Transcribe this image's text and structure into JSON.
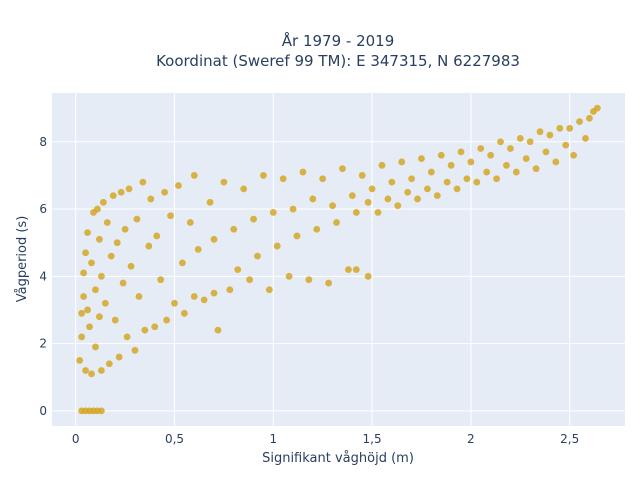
{
  "chart_data": {
    "type": "scatter",
    "title_line1": "År 1979 - 2019",
    "title_line2": "Koordinat (Sweref 99 TM): E 347315, N 6227983",
    "xlabel": "Signifikant våghöjd (m)",
    "ylabel": "Vågperiod (s)",
    "xlim": [
      -0.12,
      2.78
    ],
    "ylim": [
      -0.45,
      9.45
    ],
    "xticks": [
      0,
      0.5,
      1,
      1.5,
      2,
      2.5
    ],
    "xtick_labels": [
      "0",
      "0,5",
      "1",
      "1,5",
      "2",
      "2,5"
    ],
    "yticks": [
      0,
      2,
      4,
      6,
      8
    ],
    "ytick_labels": [
      "0",
      "2",
      "4",
      "6",
      "8"
    ],
    "grid": true,
    "marker_color": "#d4a41c",
    "background_color": "#e5ecf6",
    "points": [
      [
        0.02,
        1.5
      ],
      [
        0.03,
        2.2
      ],
      [
        0.03,
        2.9
      ],
      [
        0.04,
        3.4
      ],
      [
        0.04,
        4.1
      ],
      [
        0.05,
        4.7
      ],
      [
        0.05,
        1.2
      ],
      [
        0.06,
        3.0
      ],
      [
        0.06,
        5.3
      ],
      [
        0.07,
        2.5
      ],
      [
        0.08,
        1.1
      ],
      [
        0.08,
        4.4
      ],
      [
        0.09,
        5.9
      ],
      [
        0.1,
        3.6
      ],
      [
        0.1,
        1.9
      ],
      [
        0.11,
        6.0
      ],
      [
        0.12,
        2.8
      ],
      [
        0.12,
        5.1
      ],
      [
        0.13,
        1.2
      ],
      [
        0.13,
        4.0
      ],
      [
        0.14,
        6.2
      ],
      [
        0.15,
        3.2
      ],
      [
        0.16,
        5.6
      ],
      [
        0.17,
        1.4
      ],
      [
        0.18,
        4.6
      ],
      [
        0.19,
        6.4
      ],
      [
        0.2,
        2.7
      ],
      [
        0.21,
        5.0
      ],
      [
        0.22,
        1.6
      ],
      [
        0.23,
        6.5
      ],
      [
        0.24,
        3.8
      ],
      [
        0.25,
        5.4
      ],
      [
        0.26,
        2.2
      ],
      [
        0.27,
        6.6
      ],
      [
        0.28,
        4.3
      ],
      [
        0.3,
        1.8
      ],
      [
        0.31,
        5.7
      ],
      [
        0.32,
        3.4
      ],
      [
        0.34,
        6.8
      ],
      [
        0.35,
        2.4
      ],
      [
        0.37,
        4.9
      ],
      [
        0.38,
        6.3
      ],
      [
        0.4,
        2.5
      ],
      [
        0.41,
        5.2
      ],
      [
        0.43,
        3.9
      ],
      [
        0.45,
        6.5
      ],
      [
        0.46,
        2.7
      ],
      [
        0.48,
        5.8
      ],
      [
        0.5,
        3.2
      ],
      [
        0.52,
        6.7
      ],
      [
        0.54,
        4.4
      ],
      [
        0.55,
        2.9
      ],
      [
        0.58,
        5.6
      ],
      [
        0.6,
        3.4
      ],
      [
        0.6,
        7.0
      ],
      [
        0.62,
        4.8
      ],
      [
        0.65,
        3.3
      ],
      [
        0.68,
        6.2
      ],
      [
        0.7,
        3.5
      ],
      [
        0.7,
        5.1
      ],
      [
        0.72,
        2.4
      ],
      [
        0.75,
        6.8
      ],
      [
        0.78,
        3.6
      ],
      [
        0.8,
        5.4
      ],
      [
        0.82,
        4.2
      ],
      [
        0.85,
        6.6
      ],
      [
        0.88,
        3.9
      ],
      [
        0.9,
        5.7
      ],
      [
        0.92,
        4.6
      ],
      [
        0.95,
        7.0
      ],
      [
        0.98,
        3.6
      ],
      [
        1.0,
        5.9
      ],
      [
        1.02,
        4.9
      ],
      [
        1.05,
        6.9
      ],
      [
        1.08,
        4.0
      ],
      [
        1.1,
        6.0
      ],
      [
        1.12,
        5.2
      ],
      [
        1.15,
        7.1
      ],
      [
        1.18,
        3.9
      ],
      [
        1.2,
        6.3
      ],
      [
        1.22,
        5.4
      ],
      [
        1.25,
        6.9
      ],
      [
        1.28,
        3.8
      ],
      [
        1.3,
        6.1
      ],
      [
        1.32,
        5.6
      ],
      [
        1.35,
        7.2
      ],
      [
        1.38,
        4.2
      ],
      [
        1.4,
        6.4
      ],
      [
        1.42,
        5.9
      ],
      [
        1.45,
        7.0
      ],
      [
        1.48,
        6.2
      ],
      [
        1.5,
        6.6
      ],
      [
        1.53,
        5.9
      ],
      [
        1.55,
        7.3
      ],
      [
        1.58,
        6.3
      ],
      [
        1.6,
        6.8
      ],
      [
        1.63,
        6.1
      ],
      [
        1.65,
        7.4
      ],
      [
        1.68,
        6.5
      ],
      [
        1.7,
        6.9
      ],
      [
        1.73,
        6.3
      ],
      [
        1.75,
        7.5
      ],
      [
        1.78,
        6.6
      ],
      [
        1.8,
        7.1
      ],
      [
        1.83,
        6.4
      ],
      [
        1.85,
        7.6
      ],
      [
        1.88,
        6.8
      ],
      [
        1.9,
        7.3
      ],
      [
        1.93,
        6.6
      ],
      [
        1.95,
        7.7
      ],
      [
        1.98,
        6.9
      ],
      [
        2.0,
        7.4
      ],
      [
        2.03,
        6.8
      ],
      [
        2.05,
        7.8
      ],
      [
        2.08,
        7.1
      ],
      [
        2.1,
        7.6
      ],
      [
        2.13,
        6.9
      ],
      [
        2.15,
        8.0
      ],
      [
        2.18,
        7.3
      ],
      [
        2.2,
        7.8
      ],
      [
        2.23,
        7.1
      ],
      [
        2.25,
        8.1
      ],
      [
        2.28,
        7.5
      ],
      [
        2.3,
        8.0
      ],
      [
        2.33,
        7.2
      ],
      [
        2.35,
        8.3
      ],
      [
        2.38,
        7.7
      ],
      [
        2.4,
        8.2
      ],
      [
        2.43,
        7.4
      ],
      [
        2.45,
        8.4
      ],
      [
        2.48,
        7.9
      ],
      [
        2.5,
        8.4
      ],
      [
        2.52,
        7.6
      ],
      [
        2.55,
        8.6
      ],
      [
        2.58,
        8.1
      ],
      [
        2.6,
        8.7
      ],
      [
        2.62,
        8.9
      ],
      [
        2.64,
        9.0
      ],
      [
        0.03,
        0.0
      ],
      [
        0.05,
        0.0
      ],
      [
        0.07,
        0.0
      ],
      [
        0.09,
        0.0
      ],
      [
        0.11,
        0.0
      ],
      [
        0.13,
        0.0
      ],
      [
        1.42,
        4.2
      ],
      [
        1.48,
        4.0
      ]
    ]
  }
}
